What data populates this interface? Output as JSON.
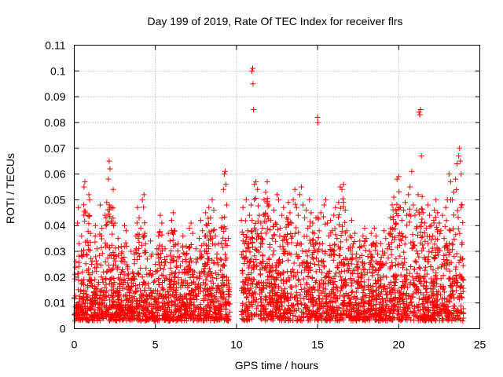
{
  "chart_data": {
    "type": "scatter",
    "title": "Day 199 of 2019, Rate Of TEC Index for receiver flrs",
    "xlabel": "GPS time / hours",
    "ylabel": "ROTI / TECUs",
    "xlim": [
      0,
      25
    ],
    "ylim": [
      0,
      0.11
    ],
    "xticks": [
      0,
      5,
      10,
      15,
      20,
      25
    ],
    "xtick_labels": [
      "0",
      "5",
      "10",
      "15",
      "20",
      "25"
    ],
    "yticks": [
      0,
      0.01,
      0.02,
      0.03,
      0.04,
      0.05,
      0.06,
      0.07,
      0.08,
      0.09,
      0.1,
      0.11
    ],
    "ytick_labels": [
      "0",
      "0.01",
      "0.02",
      "0.03",
      "0.04",
      "0.05",
      "0.06",
      "0.07",
      "0.08",
      "0.09",
      "0.1",
      "0.11"
    ],
    "grid": true,
    "marker": "+",
    "color": "#ff0000",
    "data_gap_hours": [
      9.6,
      10.3
    ],
    "series": [
      {
        "name": "ROTI",
        "points": [
          [
            0.0,
            0.012
          ],
          [
            0.05,
            0.021
          ],
          [
            0.1,
            0.026
          ],
          [
            0.15,
            0.009
          ],
          [
            0.2,
            0.041
          ],
          [
            0.25,
            0.047
          ],
          [
            0.3,
            0.033
          ],
          [
            0.4,
            0.015
          ],
          [
            0.45,
            0.036
          ],
          [
            0.5,
            0.028
          ],
          [
            0.6,
            0.055
          ],
          [
            0.65,
            0.057
          ],
          [
            0.7,
            0.045
          ],
          [
            0.8,
            0.034
          ],
          [
            0.9,
            0.052
          ],
          [
            0.95,
            0.05
          ],
          [
            1.0,
            0.037
          ],
          [
            1.1,
            0.026
          ],
          [
            1.2,
            0.014
          ],
          [
            1.3,
            0.04
          ],
          [
            1.4,
            0.031
          ],
          [
            1.5,
            0.018
          ],
          [
            1.6,
            0.048
          ],
          [
            1.7,
            0.039
          ],
          [
            1.8,
            0.022
          ],
          [
            1.9,
            0.044
          ],
          [
            2.0,
            0.049
          ],
          [
            2.1,
            0.058
          ],
          [
            2.15,
            0.065
          ],
          [
            2.2,
            0.062
          ],
          [
            2.3,
            0.047
          ],
          [
            2.4,
            0.054
          ],
          [
            2.5,
            0.041
          ],
          [
            2.6,
            0.028
          ],
          [
            2.7,
            0.035
          ],
          [
            2.8,
            0.019
          ],
          [
            2.9,
            0.032
          ],
          [
            3.0,
            0.026
          ],
          [
            3.1,
            0.04
          ],
          [
            3.2,
            0.038
          ],
          [
            3.3,
            0.024
          ],
          [
            3.4,
            0.016
          ],
          [
            3.5,
            0.03
          ],
          [
            3.6,
            0.022
          ],
          [
            3.7,
            0.029
          ],
          [
            3.8,
            0.036
          ],
          [
            3.9,
            0.047
          ],
          [
            4.0,
            0.043
          ],
          [
            4.1,
            0.039
          ],
          [
            4.2,
            0.05
          ],
          [
            4.3,
            0.052
          ],
          [
            4.4,
            0.033
          ],
          [
            4.5,
            0.027
          ],
          [
            4.6,
            0.021
          ],
          [
            4.7,
            0.034
          ],
          [
            4.8,
            0.029
          ],
          [
            4.9,
            0.018
          ],
          [
            5.0,
            0.025
          ],
          [
            5.1,
            0.031
          ],
          [
            5.2,
            0.036
          ],
          [
            5.3,
            0.044
          ],
          [
            5.4,
            0.041
          ],
          [
            5.5,
            0.023
          ],
          [
            5.6,
            0.031
          ],
          [
            5.7,
            0.028
          ],
          [
            5.8,
            0.037
          ],
          [
            5.9,
            0.034
          ],
          [
            6.0,
            0.042
          ],
          [
            6.1,
            0.045
          ],
          [
            6.2,
            0.038
          ],
          [
            6.3,
            0.026
          ],
          [
            6.4,
            0.033
          ],
          [
            6.5,
            0.028
          ],
          [
            6.6,
            0.019
          ],
          [
            6.7,
            0.036
          ],
          [
            6.8,
            0.029
          ],
          [
            6.9,
            0.032
          ],
          [
            7.0,
            0.024
          ],
          [
            7.1,
            0.039
          ],
          [
            7.2,
            0.041
          ],
          [
            7.3,
            0.037
          ],
          [
            7.4,
            0.022
          ],
          [
            7.5,
            0.031
          ],
          [
            7.6,
            0.027
          ],
          [
            7.7,
            0.035
          ],
          [
            7.8,
            0.042
          ],
          [
            7.9,
            0.038
          ],
          [
            8.0,
            0.033
          ],
          [
            8.1,
            0.045
          ],
          [
            8.2,
            0.04
          ],
          [
            8.3,
            0.047
          ],
          [
            8.4,
            0.043
          ],
          [
            8.5,
            0.05
          ],
          [
            8.6,
            0.046
          ],
          [
            8.7,
            0.036
          ],
          [
            8.8,
            0.029
          ],
          [
            8.9,
            0.033
          ],
          [
            9.0,
            0.027
          ],
          [
            9.1,
            0.043
          ],
          [
            9.2,
            0.054
          ],
          [
            9.25,
            0.06
          ],
          [
            9.3,
            0.061
          ],
          [
            9.35,
            0.056
          ],
          [
            9.4,
            0.048
          ],
          [
            9.5,
            0.035
          ],
          [
            10.3,
            0.042
          ],
          [
            10.4,
            0.047
          ],
          [
            10.5,
            0.033
          ],
          [
            10.6,
            0.05
          ],
          [
            10.7,
            0.038
          ],
          [
            10.8,
            0.044
          ],
          [
            10.9,
            0.048
          ],
          [
            10.95,
            0.1
          ],
          [
            11.0,
            0.101
          ],
          [
            11.02,
            0.095
          ],
          [
            11.05,
            0.085
          ],
          [
            11.1,
            0.056
          ],
          [
            11.2,
            0.057
          ],
          [
            11.3,
            0.054
          ],
          [
            11.4,
            0.044
          ],
          [
            11.5,
            0.041
          ],
          [
            11.6,
            0.039
          ],
          [
            11.7,
            0.05
          ],
          [
            11.8,
            0.053
          ],
          [
            11.9,
            0.057
          ],
          [
            12.0,
            0.048
          ],
          [
            12.1,
            0.042
          ],
          [
            12.2,
            0.035
          ],
          [
            12.3,
            0.046
          ],
          [
            12.4,
            0.041
          ],
          [
            12.5,
            0.052
          ],
          [
            12.6,
            0.05
          ],
          [
            12.7,
            0.039
          ],
          [
            12.8,
            0.044
          ],
          [
            12.9,
            0.047
          ],
          [
            13.0,
            0.036
          ],
          [
            13.1,
            0.043
          ],
          [
            13.2,
            0.049
          ],
          [
            13.3,
            0.045
          ],
          [
            13.4,
            0.041
          ],
          [
            13.5,
            0.05
          ],
          [
            13.6,
            0.054
          ],
          [
            13.7,
            0.047
          ],
          [
            13.8,
            0.044
          ],
          [
            13.9,
            0.052
          ],
          [
            14.0,
            0.055
          ],
          [
            14.1,
            0.048
          ],
          [
            14.2,
            0.043
          ],
          [
            14.3,
            0.046
          ],
          [
            14.4,
            0.039
          ],
          [
            14.5,
            0.05
          ],
          [
            14.6,
            0.045
          ],
          [
            14.7,
            0.041
          ],
          [
            14.8,
            0.037
          ],
          [
            14.9,
            0.043
          ],
          [
            15.0,
            0.082
          ],
          [
            15.02,
            0.08
          ],
          [
            15.1,
            0.038
          ],
          [
            15.2,
            0.045
          ],
          [
            15.3,
            0.033
          ],
          [
            15.4,
            0.048
          ],
          [
            15.5,
            0.05
          ],
          [
            15.6,
            0.041
          ],
          [
            15.7,
            0.036
          ],
          [
            15.8,
            0.042
          ],
          [
            15.9,
            0.038
          ],
          [
            16.0,
            0.044
          ],
          [
            16.1,
            0.047
          ],
          [
            16.2,
            0.035
          ],
          [
            16.3,
            0.049
          ],
          [
            16.4,
            0.055
          ],
          [
            16.5,
            0.054
          ],
          [
            16.6,
            0.056
          ],
          [
            16.7,
            0.046
          ],
          [
            16.8,
            0.038
          ],
          [
            16.9,
            0.031
          ],
          [
            17.0,
            0.036
          ],
          [
            17.1,
            0.042
          ],
          [
            17.2,
            0.033
          ],
          [
            17.3,
            0.037
          ],
          [
            17.4,
            0.029
          ],
          [
            17.5,
            0.026
          ],
          [
            17.6,
            0.034
          ],
          [
            17.7,
            0.032
          ],
          [
            17.8,
            0.036
          ],
          [
            17.9,
            0.039
          ],
          [
            18.0,
            0.035
          ],
          [
            18.1,
            0.028
          ],
          [
            18.2,
            0.03
          ],
          [
            18.3,
            0.037
          ],
          [
            18.4,
            0.033
          ],
          [
            18.5,
            0.039
          ],
          [
            18.6,
            0.036
          ],
          [
            18.7,
            0.029
          ],
          [
            18.8,
            0.025
          ],
          [
            18.9,
            0.033
          ],
          [
            19.0,
            0.03
          ],
          [
            19.1,
            0.038
          ],
          [
            19.2,
            0.035
          ],
          [
            19.3,
            0.031
          ],
          [
            19.4,
            0.037
          ],
          [
            19.5,
            0.043
          ],
          [
            19.6,
            0.048
          ],
          [
            19.7,
            0.051
          ],
          [
            19.8,
            0.046
          ],
          [
            19.9,
            0.058
          ],
          [
            20.0,
            0.059
          ],
          [
            20.1,
            0.047
          ],
          [
            20.2,
            0.042
          ],
          [
            20.3,
            0.046
          ],
          [
            20.4,
            0.049
          ],
          [
            20.5,
            0.044
          ],
          [
            20.6,
            0.052
          ],
          [
            20.7,
            0.055
          ],
          [
            20.8,
            0.061
          ],
          [
            20.9,
            0.048
          ],
          [
            21.0,
            0.044
          ],
          [
            21.1,
            0.046
          ],
          [
            21.2,
            0.052
          ],
          [
            21.25,
            0.084
          ],
          [
            21.3,
            0.083
          ],
          [
            21.35,
            0.085
          ],
          [
            21.4,
            0.067
          ],
          [
            21.5,
            0.045
          ],
          [
            21.6,
            0.041
          ],
          [
            21.7,
            0.039
          ],
          [
            21.8,
            0.048
          ],
          [
            21.9,
            0.044
          ],
          [
            22.0,
            0.04
          ],
          [
            22.1,
            0.036
          ],
          [
            22.2,
            0.046
          ],
          [
            22.3,
            0.05
          ],
          [
            22.4,
            0.045
          ],
          [
            22.5,
            0.041
          ],
          [
            22.6,
            0.038
          ],
          [
            22.7,
            0.044
          ],
          [
            22.8,
            0.035
          ],
          [
            22.9,
            0.047
          ],
          [
            23.0,
            0.05
          ],
          [
            23.1,
            0.06
          ],
          [
            23.2,
            0.057
          ],
          [
            23.3,
            0.05
          ],
          [
            23.4,
            0.053
          ],
          [
            23.5,
            0.058
          ],
          [
            23.6,
            0.064
          ],
          [
            23.7,
            0.067
          ],
          [
            23.75,
            0.07
          ],
          [
            23.8,
            0.065
          ],
          [
            23.85,
            0.06
          ],
          [
            23.9,
            0.048
          ]
        ]
      }
    ]
  }
}
